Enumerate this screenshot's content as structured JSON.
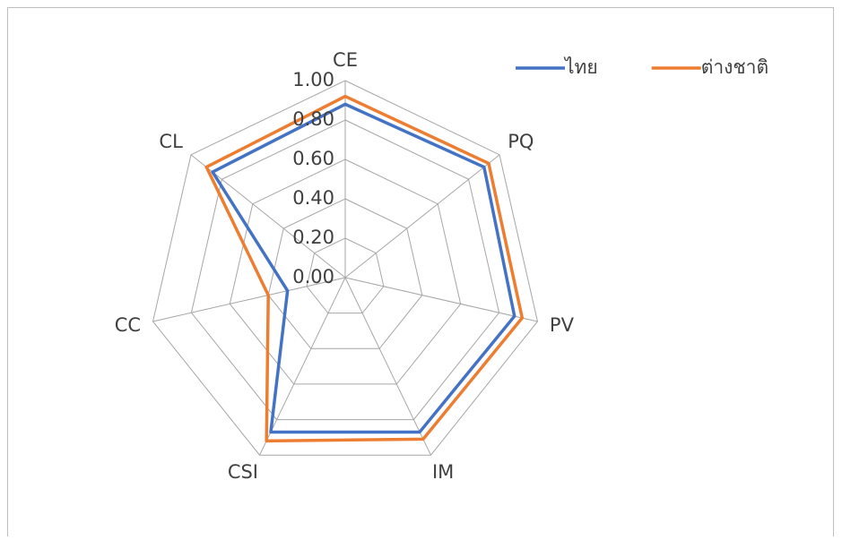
{
  "chart_data": {
    "type": "radar",
    "categories": [
      "CE",
      "PQ",
      "PV",
      "IM",
      "CSI",
      "CC",
      "CL"
    ],
    "series": [
      {
        "name": "ไทย",
        "color": "#4472c4",
        "values": [
          0.88,
          0.9,
          0.88,
          0.87,
          0.87,
          0.3,
          0.86
        ]
      },
      {
        "name": "ต่างชาติ",
        "color": "#ed7d31",
        "values": [
          0.92,
          0.93,
          0.92,
          0.91,
          0.92,
          0.4,
          0.9
        ]
      }
    ],
    "ylim": [
      0,
      1
    ],
    "yticks": [
      {
        "value": 0,
        "label": "0.00"
      },
      {
        "value": 0.2,
        "label": "0.20"
      },
      {
        "value": 0.4,
        "label": "0.40"
      },
      {
        "value": 0.6,
        "label": "0.60"
      },
      {
        "value": 0.8,
        "label": "0.80"
      },
      {
        "value": 1,
        "label": "1.00"
      }
    ],
    "grid": true,
    "legend": "top-right"
  }
}
